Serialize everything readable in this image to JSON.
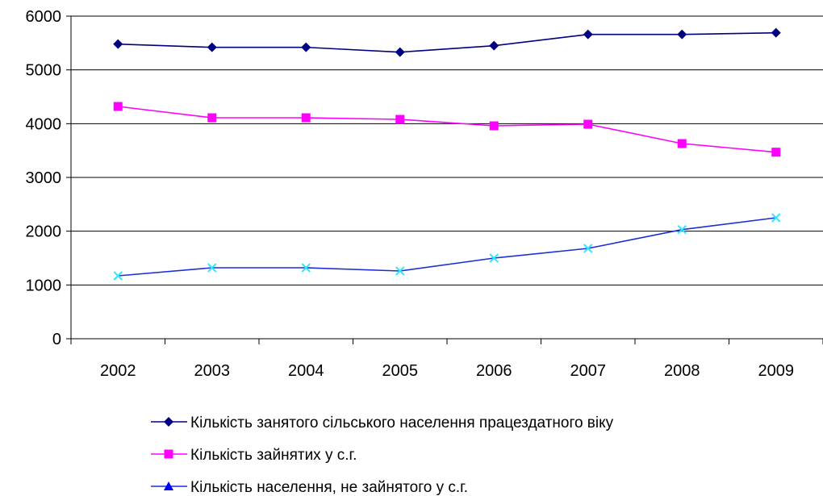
{
  "chart_data": {
    "type": "line",
    "categories": [
      "2002",
      "2003",
      "2004",
      "2005",
      "2006",
      "2007",
      "2008",
      "2009"
    ],
    "ylim": [
      0,
      6000
    ],
    "yticks": [
      "0",
      "1000",
      "2000",
      "3000",
      "4000",
      "5000",
      "6000"
    ],
    "grid": "horizontal",
    "legend_position": "bottom",
    "series": [
      {
        "name": "Кількість занятого сільського населення працездатного віку",
        "values": [
          5480,
          5420,
          5420,
          5330,
          5450,
          5660,
          5660,
          5690
        ],
        "color": "#000080",
        "marker": "diamond",
        "marker_color": "#000080"
      },
      {
        "name": "Кількість зайнятих у с.г.",
        "values": [
          4320,
          4110,
          4110,
          4080,
          3960,
          3990,
          3630,
          3470
        ],
        "color": "#ff00ff",
        "marker": "square",
        "marker_color": "#ff00ff"
      },
      {
        "name": "Кількість населення, не зайнятого у с.г.",
        "values": [
          1170,
          1320,
          1320,
          1260,
          1500,
          1680,
          2030,
          2250
        ],
        "color": "#1a2fd6",
        "marker": "x",
        "marker_color": "#33e6ff",
        "legend_marker": "triangle",
        "legend_marker_color": "#0000ff"
      }
    ]
  }
}
